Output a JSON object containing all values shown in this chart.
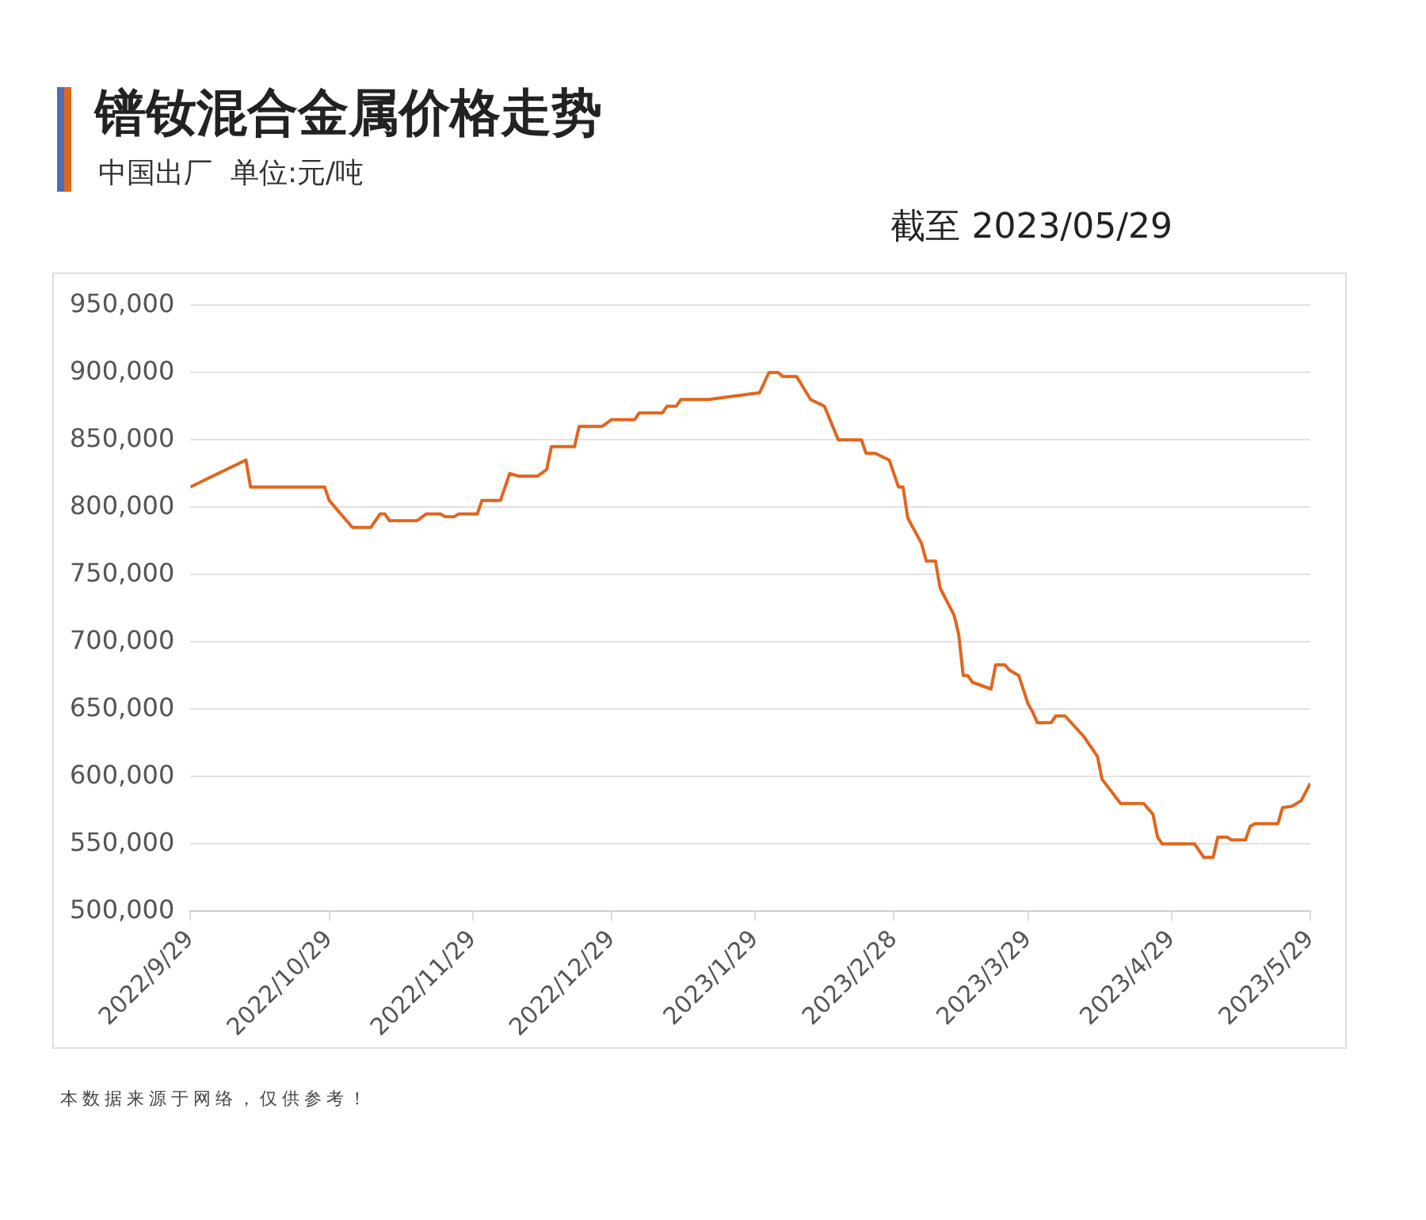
{
  "chart_data": {
    "type": "line",
    "title": "镨钕混合金属价格走势",
    "subtitle": "中国出厂  单位:元/吨",
    "annotations": [
      "截至 2023/05/29",
      "本数据来源于网络，仅供参考！"
    ],
    "x": [
      "2022-09-29",
      "2022-10-11",
      "2022-10-12",
      "2022-10-28",
      "2022-10-29",
      "2022-10-31",
      "2022-11-03",
      "2022-11-07",
      "2022-11-09",
      "2022-11-10",
      "2022-11-11",
      "2022-11-17",
      "2022-11-19",
      "2022-11-22",
      "2022-11-23",
      "2022-11-25",
      "2022-11-26",
      "2022-11-30",
      "2022-12-01",
      "2022-12-05",
      "2022-12-07",
      "2022-12-09",
      "2022-12-13",
      "2022-12-15",
      "2022-12-16",
      "2022-12-21",
      "2022-12-22",
      "2022-12-27",
      "2022-12-29",
      "2023-01-03",
      "2023-01-04",
      "2023-01-09",
      "2023-01-10",
      "2023-01-12",
      "2023-01-13",
      "2023-01-19",
      "2023-01-30",
      "2023-02-01",
      "2023-02-03",
      "2023-02-04",
      "2023-02-07",
      "2023-02-10",
      "2023-02-13",
      "2023-02-16",
      "2023-02-21",
      "2023-02-22",
      "2023-02-24",
      "2023-02-27",
      "2023-03-01",
      "2023-03-02",
      "2023-03-03",
      "2023-03-06",
      "2023-03-07",
      "2023-03-09",
      "2023-03-10",
      "2023-03-13",
      "2023-03-14",
      "2023-03-15",
      "2023-03-16",
      "2023-03-17",
      "2023-03-21",
      "2023-03-22",
      "2023-03-24",
      "2023-03-25",
      "2023-03-27",
      "2023-03-29",
      "2023-03-30",
      "2023-03-31",
      "2023-04-03",
      "2023-04-04",
      "2023-04-06",
      "2023-04-10",
      "2023-04-13",
      "2023-04-14",
      "2023-04-18",
      "2023-04-23",
      "2023-04-25",
      "2023-04-26",
      "2023-04-27",
      "2023-05-04",
      "2023-05-06",
      "2023-05-08",
      "2023-05-09",
      "2023-05-11",
      "2023-05-12",
      "2023-05-15",
      "2023-05-16",
      "2023-05-17",
      "2023-05-22",
      "2023-05-23",
      "2023-05-25",
      "2023-05-27",
      "2023-05-29"
    ],
    "series": [
      {
        "color": "#e0661e",
        "values": [
          815000,
          835000,
          815000,
          815000,
          805000,
          797000,
          785000,
          785000,
          795000,
          795000,
          790000,
          790000,
          795000,
          795000,
          793000,
          793000,
          795000,
          795000,
          805000,
          805000,
          825000,
          823000,
          823000,
          828000,
          845000,
          845000,
          860000,
          860000,
          865000,
          865000,
          870000,
          870000,
          875000,
          875000,
          880000,
          880000,
          885000,
          900000,
          900000,
          897000,
          897000,
          880000,
          875000,
          850000,
          850000,
          840000,
          840000,
          835000,
          815000,
          815000,
          792000,
          773000,
          760000,
          760000,
          740000,
          720000,
          706000,
          675000,
          675000,
          670000,
          665000,
          683000,
          683000,
          679000,
          675000,
          654000,
          648000,
          640000,
          640000,
          645000,
          645000,
          630000,
          615000,
          598000,
          580000,
          580000,
          572000,
          555000,
          550000,
          550000,
          540000,
          540000,
          555000,
          555000,
          553000,
          553000,
          563000,
          565000,
          565000,
          577000,
          578000,
          582000,
          595000
        ]
      }
    ],
    "xlim": [
      "2022-09-29",
      "2023-05-29"
    ],
    "xticks": [
      {
        "value": "2022-09-29",
        "label": "2022/9/29"
      },
      {
        "value": "2022-10-29",
        "label": "2022/10/29"
      },
      {
        "value": "2022-11-29",
        "label": "2022/11/29"
      },
      {
        "value": "2022-12-29",
        "label": "2022/12/29"
      },
      {
        "value": "2023-01-29",
        "label": "2023/1/29"
      },
      {
        "value": "2023-02-28",
        "label": "2023/2/28"
      },
      {
        "value": "2023-03-29",
        "label": "2023/3/29"
      },
      {
        "value": "2023-04-29",
        "label": "2023/4/29"
      },
      {
        "value": "2023-05-29",
        "label": "2023/5/29"
      }
    ],
    "ylim": [
      500000,
      950000
    ],
    "yticks": [
      {
        "value": 500000,
        "label": "500,000"
      },
      {
        "value": 550000,
        "label": "550,000"
      },
      {
        "value": 600000,
        "label": "600,000"
      },
      {
        "value": 650000,
        "label": "650,000"
      },
      {
        "value": 700000,
        "label": "700,000"
      },
      {
        "value": 750000,
        "label": "750,000"
      },
      {
        "value": 800000,
        "label": "800,000"
      },
      {
        "value": 850000,
        "label": "850,000"
      },
      {
        "value": 900000,
        "label": "900,000"
      },
      {
        "value": 950000,
        "label": "950,000"
      }
    ],
    "grid": "y",
    "legend": false,
    "marker": "none",
    "line_style": "solid"
  }
}
